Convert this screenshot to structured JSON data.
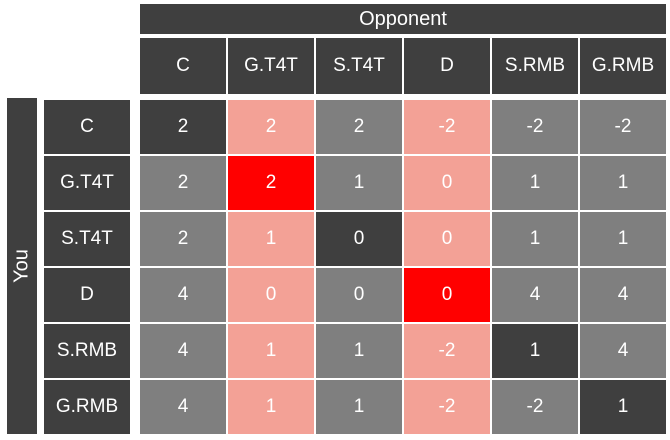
{
  "opponent_label": "Opponent",
  "you_label": "You",
  "strategies": [
    "C",
    "G.T4T",
    "S.T4T",
    "D",
    "S.RMB",
    "G.RMB"
  ],
  "matrix": [
    [
      "2",
      "2",
      "2",
      "-2",
      "-2",
      "-2"
    ],
    [
      "2",
      "2",
      "1",
      "0",
      "1",
      "1"
    ],
    [
      "2",
      "1",
      "0",
      "0",
      "1",
      "1"
    ],
    [
      "4",
      "0",
      "0",
      "0",
      "4",
      "4"
    ],
    [
      "4",
      "1",
      "1",
      "-2",
      "1",
      "4"
    ],
    [
      "4",
      "1",
      "1",
      "-2",
      "-2",
      "1"
    ]
  ],
  "colors": {
    "header": "#3f3f3f",
    "normal": "#7f7f7f",
    "dark": "#3f3f3f",
    "pink": "#f3a196",
    "red": "#ff0000"
  },
  "cell_styles": [
    [
      "dark",
      "pink",
      "normal",
      "pink",
      "normal",
      "normal"
    ],
    [
      "normal",
      "red",
      "normal",
      "pink",
      "normal",
      "normal"
    ],
    [
      "normal",
      "pink",
      "dark",
      "pink",
      "normal",
      "normal"
    ],
    [
      "normal",
      "pink",
      "normal",
      "red",
      "normal",
      "normal"
    ],
    [
      "normal",
      "pink",
      "normal",
      "pink",
      "dark",
      "normal"
    ],
    [
      "normal",
      "pink",
      "normal",
      "pink",
      "normal",
      "dark"
    ]
  ]
}
